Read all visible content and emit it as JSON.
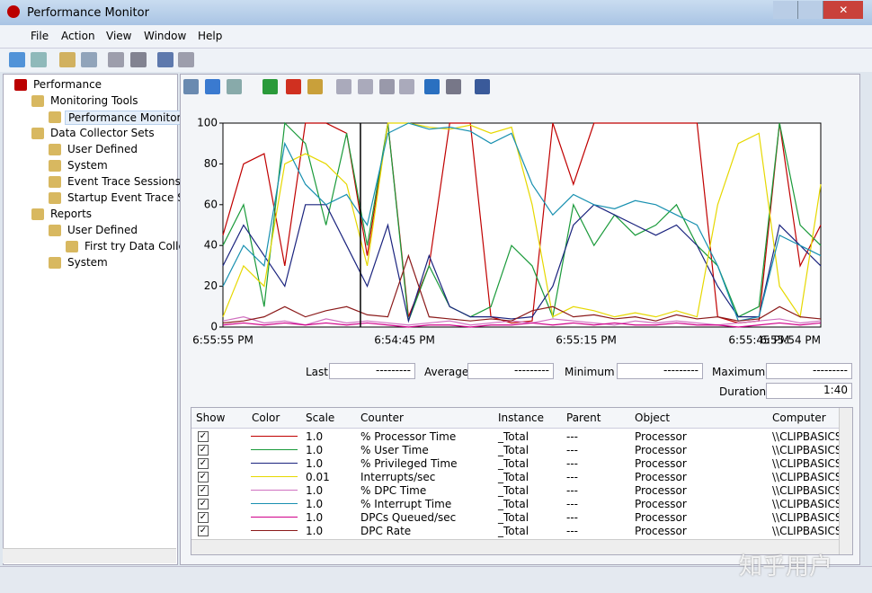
{
  "window": {
    "title": "Performance Monitor"
  },
  "menu": [
    "File",
    "Action",
    "View",
    "Window",
    "Help"
  ],
  "tree": [
    {
      "label": "Performance",
      "depth": 0
    },
    {
      "label": "Monitoring Tools",
      "depth": 1
    },
    {
      "label": "Performance Monitor",
      "depth": 2
    },
    {
      "label": "Data Collector Sets",
      "depth": 1
    },
    {
      "label": "User Defined",
      "depth": 2
    },
    {
      "label": "System",
      "depth": 2
    },
    {
      "label": "Event Trace Sessions",
      "depth": 2
    },
    {
      "label": "Startup Event Trace Ses",
      "depth": 2
    },
    {
      "label": "Reports",
      "depth": 1
    },
    {
      "label": "User Defined",
      "depth": 2
    },
    {
      "label": "First try  Data Collec",
      "depth": 3
    },
    {
      "label": "System",
      "depth": 2
    }
  ],
  "chart_data": {
    "type": "line",
    "ylim": [
      0,
      100
    ],
    "yticks": [
      0,
      20,
      40,
      60,
      80,
      100
    ],
    "x_labels": [
      "6:55:55 PM",
      "6:54:45 PM",
      "6:55:15 PM",
      "6:55:45 PM",
      "6:55:54 PM"
    ],
    "series": [
      {
        "name": "% Processor Time",
        "color": "#c00000",
        "values": [
          45,
          80,
          85,
          30,
          100,
          100,
          95,
          35,
          100,
          5,
          30,
          100,
          100,
          5,
          2,
          3,
          100,
          70,
          100,
          100,
          100,
          100,
          100,
          100,
          5,
          2,
          3,
          100,
          30,
          50
        ]
      },
      {
        "name": "% User Time",
        "color": "#1a9a3a",
        "values": [
          40,
          60,
          10,
          100,
          90,
          50,
          95,
          40,
          100,
          3,
          30,
          10,
          5,
          10,
          40,
          30,
          5,
          60,
          40,
          55,
          45,
          50,
          60,
          40,
          30,
          5,
          10,
          100,
          50,
          40
        ]
      },
      {
        "name": "% Privileged Time",
        "color": "#1a237e",
        "values": [
          30,
          50,
          35,
          20,
          60,
          60,
          40,
          20,
          50,
          3,
          35,
          10,
          5,
          5,
          4,
          5,
          20,
          50,
          60,
          55,
          50,
          45,
          50,
          40,
          20,
          5,
          5,
          50,
          40,
          30
        ]
      },
      {
        "name": "Interrupts/sec",
        "color": "#e6d800",
        "values": [
          5,
          30,
          20,
          80,
          85,
          80,
          70,
          30,
          100,
          100,
          98,
          97,
          99,
          95,
          98,
          60,
          5,
          10,
          8,
          5,
          7,
          5,
          8,
          5,
          60,
          90,
          95,
          20,
          5,
          70
        ]
      },
      {
        "name": "% DPC Time",
        "color": "#d070c0",
        "values": [
          3,
          5,
          2,
          3,
          1,
          4,
          2,
          3,
          2,
          1,
          2,
          3,
          1,
          2,
          3,
          2,
          4,
          3,
          2,
          1,
          3,
          2,
          3,
          2,
          1,
          2,
          3,
          4,
          2,
          3
        ]
      },
      {
        "name": "% Interrupt Time",
        "color": "#1890b0",
        "values": [
          20,
          40,
          30,
          90,
          70,
          60,
          65,
          50,
          95,
          100,
          97,
          98,
          96,
          90,
          95,
          70,
          55,
          65,
          60,
          58,
          62,
          60,
          55,
          50,
          30,
          3,
          5,
          45,
          40,
          35
        ]
      },
      {
        "name": "DPCs Queued/sec",
        "color": "#d0008a",
        "values": [
          1,
          2,
          1,
          2,
          1,
          2,
          1,
          2,
          1,
          0,
          1,
          1,
          0,
          1,
          1,
          2,
          1,
          2,
          1,
          2,
          1,
          1,
          2,
          1,
          1,
          0,
          1,
          2,
          1,
          2
        ]
      },
      {
        "name": "DPC Rate",
        "color": "#8b1a1a",
        "values": [
          2,
          3,
          5,
          10,
          5,
          8,
          10,
          6,
          5,
          35,
          5,
          4,
          3,
          4,
          3,
          8,
          10,
          5,
          6,
          4,
          5,
          3,
          6,
          4,
          5,
          3,
          4,
          10,
          5,
          4
        ]
      }
    ]
  },
  "stats": [
    {
      "label": "Last",
      "value": "---------"
    },
    {
      "label": "Average",
      "value": "---------"
    },
    {
      "label": "Minimum",
      "value": "---------"
    },
    {
      "label": "Maximum",
      "value": "---------"
    },
    {
      "label": "Duration",
      "value": "1:40"
    }
  ],
  "table": {
    "headers": [
      "Show",
      "Color",
      "Scale",
      "Counter",
      "Instance",
      "Parent",
      "Object",
      "Computer"
    ],
    "rows": [
      [
        "1.0",
        "% Processor Time",
        "_Total",
        "---",
        "Processor",
        "\\\\CLIPBASICS"
      ],
      [
        "1.0",
        "% User Time",
        "_Total",
        "---",
        "Processor",
        "\\\\CLIPBASICS"
      ],
      [
        "1.0",
        "% Privileged Time",
        "_Total",
        "---",
        "Processor",
        "\\\\CLIPBASICS"
      ],
      [
        "0.01",
        "Interrupts/sec",
        "_Total",
        "---",
        "Processor",
        "\\\\CLIPBASICS"
      ],
      [
        "1.0",
        "% DPC Time",
        "_Total",
        "---",
        "Processor",
        "\\\\CLIPBASICS"
      ],
      [
        "1.0",
        "% Interrupt Time",
        "_Total",
        "---",
        "Processor",
        "\\\\CLIPBASICS"
      ],
      [
        "1.0",
        "DPCs Queued/sec",
        "_Total",
        "---",
        "Processor",
        "\\\\CLIPBASICS"
      ],
      [
        "1.0",
        "DPC Rate",
        "_Total",
        "---",
        "Processor",
        "\\\\CLIPBASICS"
      ]
    ]
  },
  "watermark": "知乎用户"
}
